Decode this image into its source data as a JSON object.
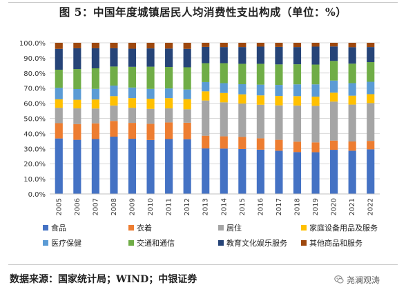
{
  "title": "图 5：中国年度城镇居民人均消费性支出构成（单位：%）",
  "source": "数据来源：国家统计局；WIND；中银证券",
  "watermark": "尧澜观涛",
  "chart_data": {
    "type": "bar",
    "stacked": true,
    "categories": [
      "2005",
      "2006",
      "2007",
      "2008",
      "2009",
      "2010",
      "2011",
      "2012",
      "2013",
      "2014",
      "2015",
      "2016",
      "2017",
      "2018",
      "2019",
      "2020",
      "2021",
      "2022"
    ],
    "series": [
      {
        "name": "食品",
        "color": "#4472c4",
        "values": [
          36.7,
          35.8,
          36.3,
          37.9,
          36.5,
          35.7,
          36.3,
          36.2,
          30.1,
          30.0,
          29.7,
          29.3,
          28.6,
          27.7,
          27.6,
          29.2,
          28.6,
          29.5
        ]
      },
      {
        "name": "衣着",
        "color": "#ed7d31",
        "values": [
          10.1,
          10.4,
          10.4,
          10.4,
          10.5,
          10.7,
          11.0,
          10.9,
          8.4,
          8.1,
          8.0,
          7.5,
          7.2,
          6.9,
          6.5,
          6.1,
          6.1,
          5.6
        ]
      },
      {
        "name": "居住",
        "color": "#a5a5a5",
        "values": [
          10.2,
          10.4,
          9.8,
          10.2,
          10.0,
          9.9,
          9.3,
          8.9,
          23.3,
          22.5,
          22.1,
          22.2,
          22.8,
          23.9,
          24.2,
          25.8,
          24.4,
          25.0
        ]
      },
      {
        "name": "家庭设备用品及服务",
        "color": "#ffc000",
        "values": [
          5.6,
          5.7,
          6.0,
          6.2,
          6.4,
          6.7,
          6.8,
          6.7,
          6.1,
          6.2,
          6.1,
          6.2,
          6.2,
          6.2,
          6.1,
          5.9,
          5.9,
          5.9
        ]
      },
      {
        "name": "医疗保健",
        "color": "#5b9bd5",
        "values": [
          7.6,
          7.1,
          7.0,
          7.0,
          7.0,
          6.5,
          6.4,
          6.4,
          6.1,
          6.5,
          6.7,
          7.1,
          7.3,
          7.8,
          8.1,
          8.0,
          8.3,
          8.2
        ]
      },
      {
        "name": "交通和通信",
        "color": "#70ad47",
        "values": [
          12.0,
          13.2,
          13.6,
          12.6,
          13.7,
          14.7,
          14.2,
          14.7,
          12.5,
          13.2,
          13.5,
          13.8,
          13.6,
          13.3,
          13.1,
          13.0,
          12.9,
          13.0
        ]
      },
      {
        "name": "教育文化娱乐服务",
        "color": "#264478",
        "values": [
          13.8,
          13.8,
          13.3,
          12.1,
          12.0,
          12.1,
          12.2,
          12.2,
          10.8,
          10.7,
          11.1,
          11.4,
          11.6,
          11.4,
          11.9,
          9.6,
          10.9,
          10.0
        ]
      },
      {
        "name": "其他商品和服务",
        "color": "#9e480e",
        "values": [
          4.0,
          3.6,
          3.6,
          3.6,
          3.9,
          3.7,
          3.8,
          4.0,
          2.7,
          2.8,
          2.8,
          2.5,
          2.7,
          2.8,
          2.5,
          2.4,
          2.9,
          2.8
        ]
      }
    ],
    "ylim": [
      0,
      100
    ],
    "yticks": [
      "0.0%",
      "10.0%",
      "20.0%",
      "30.0%",
      "40.0%",
      "50.0%",
      "60.0%",
      "70.0%",
      "80.0%",
      "90.0%",
      "100.0%"
    ],
    "grid": true,
    "legend_position": "bottom"
  }
}
